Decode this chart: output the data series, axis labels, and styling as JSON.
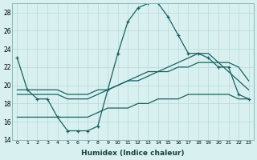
{
  "xlabel": "Humidex (Indice chaleur)",
  "ylabel": "",
  "xlim": [
    -0.5,
    23.5
  ],
  "ylim": [
    14,
    29
  ],
  "yticks": [
    14,
    16,
    18,
    20,
    22,
    24,
    26,
    28
  ],
  "xticks": [
    0,
    1,
    2,
    3,
    4,
    5,
    6,
    7,
    8,
    9,
    10,
    11,
    12,
    13,
    14,
    15,
    16,
    17,
    18,
    19,
    20,
    21,
    22,
    23
  ],
  "bg_color": "#d8f0f0",
  "grid_color": "#b8d8d8",
  "line_color": "#1a6060",
  "line1": [
    23.0,
    19.5,
    18.5,
    18.5,
    16.5,
    15.0,
    15.0,
    15.0,
    15.5,
    19.5,
    23.5,
    27.0,
    28.5,
    29.0,
    29.0,
    27.5,
    25.5,
    23.5,
    23.5,
    23.0,
    22.0,
    22.0,
    19.0,
    18.5
  ],
  "line2": [
    19.5,
    19.5,
    19.5,
    19.5,
    19.5,
    19.0,
    19.0,
    19.0,
    19.5,
    19.5,
    20.0,
    20.5,
    21.0,
    21.5,
    21.5,
    22.0,
    22.5,
    23.0,
    23.5,
    23.5,
    22.5,
    22.5,
    22.0,
    20.5
  ],
  "line3": [
    19.0,
    19.0,
    19.0,
    19.0,
    19.0,
    18.5,
    18.5,
    18.5,
    19.0,
    19.5,
    20.0,
    20.5,
    20.5,
    21.0,
    21.5,
    21.5,
    22.0,
    22.0,
    22.5,
    22.5,
    22.5,
    21.5,
    20.5,
    19.5
  ],
  "line4": [
    16.5,
    16.5,
    16.5,
    16.5,
    16.5,
    16.5,
    16.5,
    16.5,
    17.0,
    17.5,
    17.5,
    17.5,
    18.0,
    18.0,
    18.5,
    18.5,
    18.5,
    19.0,
    19.0,
    19.0,
    19.0,
    19.0,
    18.5,
    18.5
  ]
}
